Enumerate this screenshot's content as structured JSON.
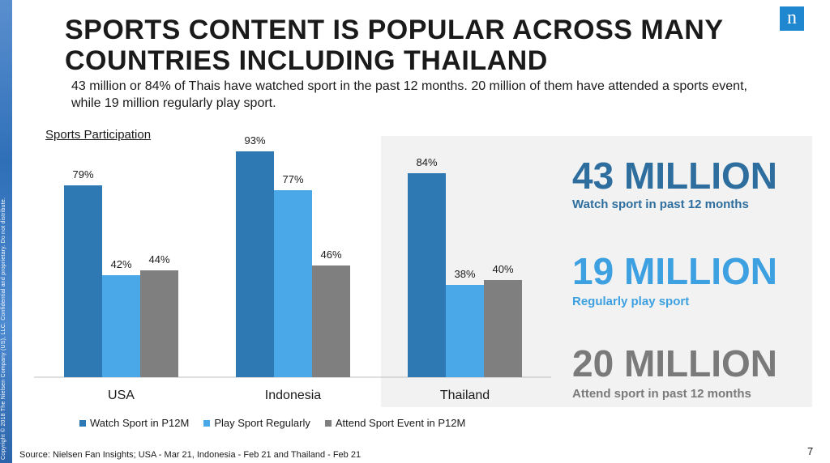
{
  "copyright": "Copyright © 2018 The Nielsen Company (US), LLC. Confidential and proprietary. Do not distribute.",
  "logo_glyph": "n",
  "title": "SPORTS CONTENT IS POPULAR ACROSS MANY COUNTRIES INCLUDING THAILAND",
  "subtitle": "43 million or 84% of Thais have watched sport in the past 12 months. 20 million of them have attended a sports event, while 19 million regularly play sport.",
  "chart_heading": "Sports Participation",
  "chart_data": {
    "type": "bar",
    "title": "Sports Participation",
    "categories": [
      "USA",
      "Indonesia",
      "Thailand"
    ],
    "series": [
      {
        "name": "Watch Sport in P12M",
        "values": [
          79,
          93,
          84
        ],
        "color": "#2e78b3"
      },
      {
        "name": "Play Sport Regularly",
        "values": [
          42,
          77,
          38
        ],
        "color": "#4aa8e8"
      },
      {
        "name": "Attend Sport Event in P12M",
        "values": [
          44,
          46,
          40
        ],
        "color": "#7f7f7f"
      }
    ],
    "value_suffix": "%",
    "ylim": [
      0,
      100
    ],
    "legend_position": "bottom",
    "grid": false
  },
  "stats": [
    {
      "value": "43 MILLION",
      "label": "Watch sport in past 12 months",
      "color": "#2e6e9e"
    },
    {
      "value": "19 MILLION",
      "label": "Regularly play sport",
      "color": "#3da0e0"
    },
    {
      "value": "20 MILLION",
      "label": "Attend sport in past 12 months",
      "color": "#7a7a7a"
    }
  ],
  "source": "Source: Nielsen Fan Insights; USA - Mar 21, Indonesia - Feb 21 and Thailand - Feb 21",
  "page_number": "7"
}
